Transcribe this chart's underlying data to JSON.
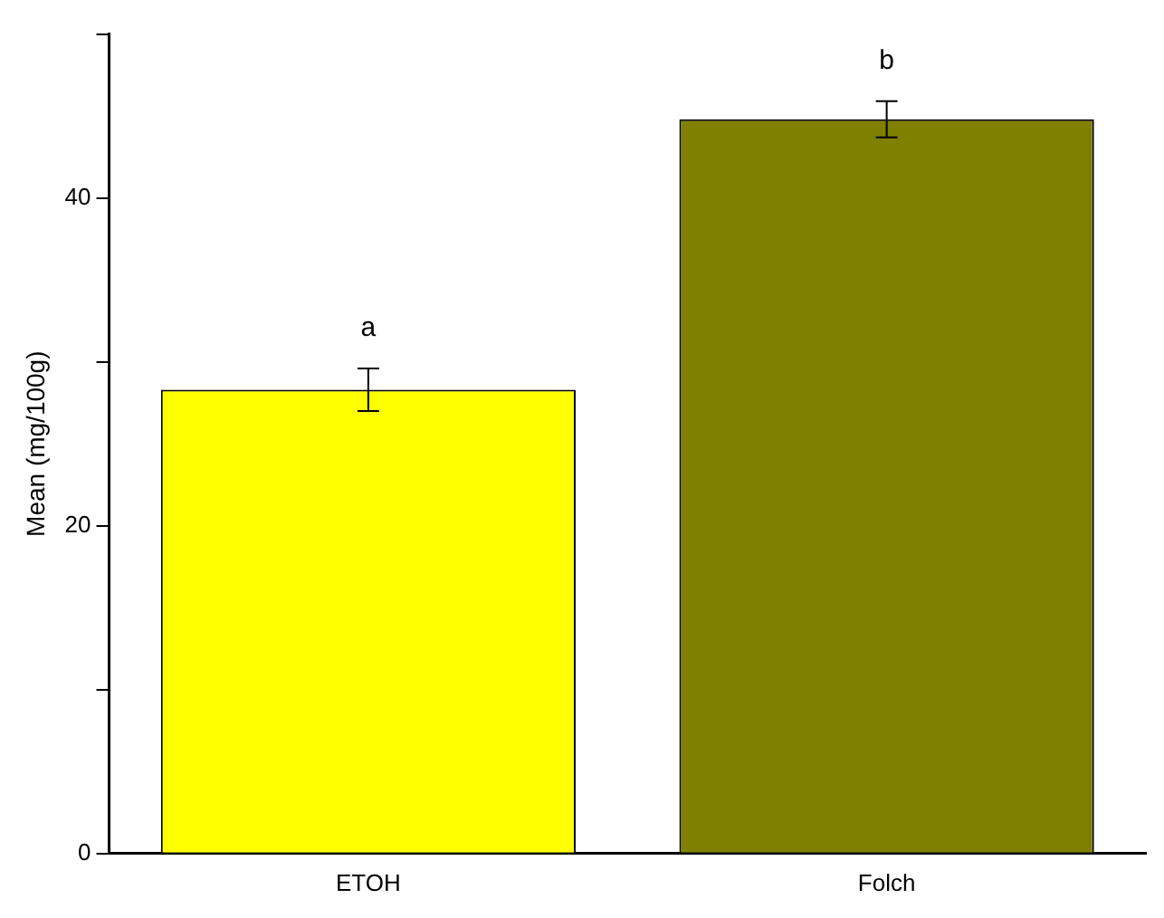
{
  "chart_data": {
    "type": "bar",
    "ylabel": "Mean (mg/100g)",
    "categories": [
      "ETOH",
      "Folch"
    ],
    "values": [
      28.3,
      44.8
    ],
    "colors": [
      "#ffff00",
      "#808000"
    ],
    "errors": [
      1.3,
      1.1
    ],
    "ylim": [
      0,
      50
    ],
    "yticks": [
      0,
      {
        "value": 10,
        "label": null
      },
      20,
      {
        "value": 30,
        "label": null
      },
      40,
      {
        "value": 50,
        "label": null
      }
    ],
    "grid": false,
    "legend": false,
    "annotations": [
      "a",
      "b"
    ]
  }
}
